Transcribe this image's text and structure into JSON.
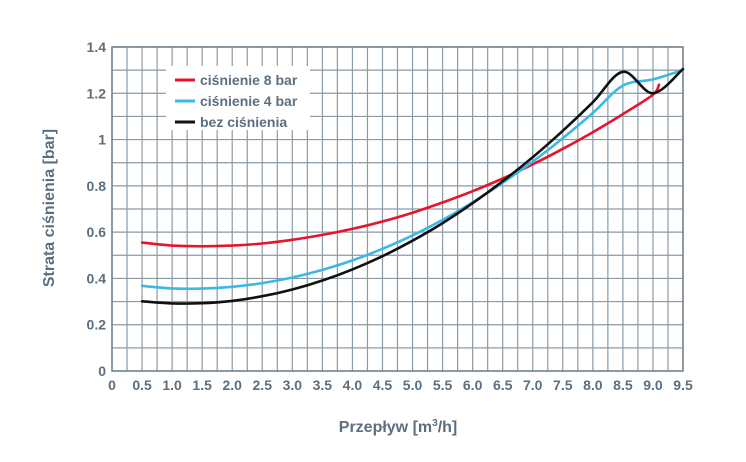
{
  "chart_data": {
    "type": "line",
    "xlabel_main": "Przepływ [m",
    "xlabel_sup": "3",
    "xlabel_tail": "/h]",
    "ylabel": "Strata ciśnienia [bar]",
    "xlim": [
      0,
      9.5
    ],
    "ylim": [
      0,
      1.4
    ],
    "grid": true,
    "legend_position": "top-left",
    "x_ticks": [
      "0",
      "0.5",
      "1.0",
      "1.5",
      "2.0",
      "2.5",
      "3.0",
      "3.5",
      "4.0",
      "4.5",
      "5.0",
      "5.5",
      "6.0",
      "6.5",
      "7.0",
      "7.5",
      "8.0",
      "8.5",
      "9.0",
      "9.5"
    ],
    "y_ticks": [
      "0",
      "0.2",
      "0.4",
      "0.6",
      "0.8",
      "1",
      "1.2",
      "1.4"
    ],
    "series": [
      {
        "name": "ciśnienie 8 bar",
        "color": "#e3162b",
        "x": [
          0.5,
          1.0,
          1.5,
          2.0,
          2.5,
          3.0,
          3.5,
          4.0,
          4.5,
          5.0,
          5.5,
          6.0,
          6.5,
          7.0,
          7.5,
          8.0,
          8.5,
          9.0,
          9.1
        ],
        "y": [
          0.555,
          0.542,
          0.539,
          0.542,
          0.551,
          0.567,
          0.588,
          0.614,
          0.646,
          0.684,
          0.728,
          0.777,
          0.832,
          0.893,
          0.96,
          1.032,
          1.11,
          1.194,
          1.237
        ]
      },
      {
        "name": "ciśnienie 4 bar",
        "color": "#3db7e8",
        "x": [
          0.5,
          1.0,
          1.5,
          2.0,
          2.5,
          3.0,
          3.5,
          4.0,
          4.5,
          5.0,
          5.5,
          6.0,
          6.5,
          7.0,
          7.5,
          8.0,
          8.5,
          9.0,
          9.5
        ],
        "y": [
          0.368,
          0.357,
          0.356,
          0.364,
          0.38,
          0.404,
          0.437,
          0.478,
          0.528,
          0.586,
          0.653,
          0.729,
          0.813,
          0.905,
          1.006,
          1.115,
          1.233,
          1.26,
          1.3
        ]
      },
      {
        "name": "bez ciśnienia",
        "color": "#111111",
        "x": [
          0.5,
          1.0,
          1.5,
          2.0,
          2.5,
          3.0,
          3.5,
          4.0,
          4.5,
          5.0,
          5.5,
          6.0,
          6.5,
          7.0,
          7.5,
          8.0,
          8.5,
          9.0,
          9.5
        ],
        "y": [
          0.301,
          0.292,
          0.293,
          0.303,
          0.323,
          0.352,
          0.391,
          0.439,
          0.496,
          0.563,
          0.639,
          0.725,
          0.82,
          0.924,
          1.038,
          1.161,
          1.293,
          1.2,
          1.305
        ]
      }
    ]
  }
}
